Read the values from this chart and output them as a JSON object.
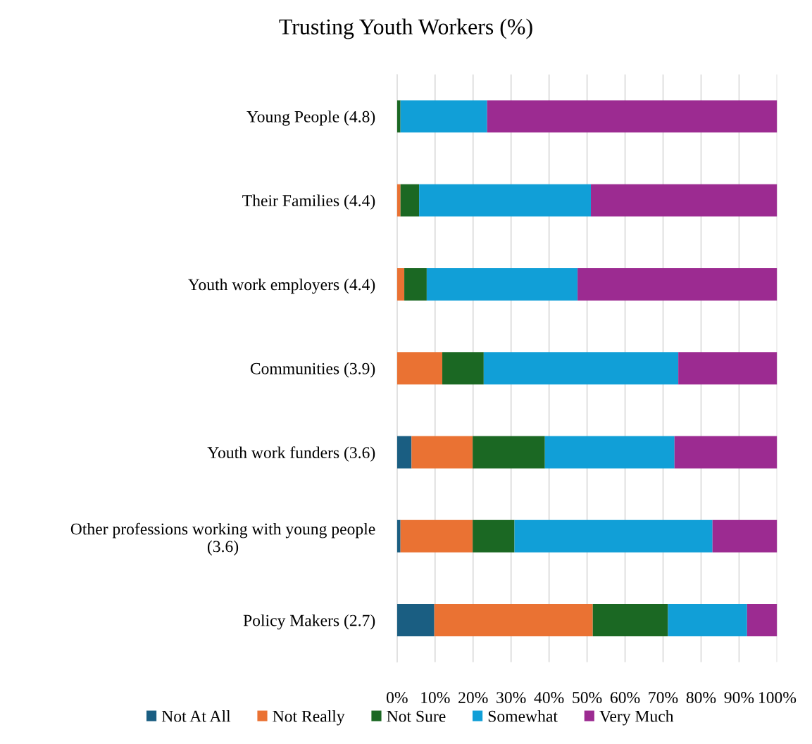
{
  "chart_data": {
    "type": "bar",
    "orientation": "horizontal",
    "stacked": true,
    "title": "Trusting Youth Workers (%)",
    "categories": [
      "Young People (4.8)",
      "Their Families (4.4)",
      "Youth work employers (4.4)",
      "Communities (3.9)",
      "Youth work funders (3.6)",
      "Other professions working with young people (3.6)",
      "Policy Makers (2.7)"
    ],
    "series": [
      {
        "name": "Not At All",
        "color": "#1a5e82",
        "values": [
          0,
          0,
          0,
          0,
          3.8,
          0.9,
          9.8
        ]
      },
      {
        "name": "Not Really",
        "color": "#ea7233",
        "values": [
          0,
          0.9,
          1.9,
          11.9,
          16.1,
          19.0,
          41.7
        ]
      },
      {
        "name": "Not Sure",
        "color": "#1b6823",
        "values": [
          0.9,
          4.9,
          5.9,
          10.9,
          19.0,
          11.0,
          19.8
        ]
      },
      {
        "name": "Somewhat",
        "color": "#119fd7",
        "values": [
          22.8,
          45.2,
          39.7,
          51.2,
          34.1,
          52.1,
          20.8
        ]
      },
      {
        "name": "Very Much",
        "color": "#9c2b91",
        "values": [
          76.3,
          49.0,
          52.5,
          26.0,
          27.0,
          17.0,
          7.9
        ]
      }
    ],
    "xlim": [
      0,
      100
    ],
    "xticks": [
      {
        "value": 0,
        "label": "0%"
      },
      {
        "value": 10,
        "label": "10%"
      },
      {
        "value": 20,
        "label": "20%"
      },
      {
        "value": 30,
        "label": "30%"
      },
      {
        "value": 40,
        "label": "40%"
      },
      {
        "value": 50,
        "label": "50%"
      },
      {
        "value": 60,
        "label": "60%"
      },
      {
        "value": 70,
        "label": "70%"
      },
      {
        "value": 80,
        "label": "80%"
      },
      {
        "value": 90,
        "label": "90%"
      },
      {
        "value": 100,
        "label": "100%"
      }
    ],
    "grid": "x",
    "legend": "bottom"
  }
}
